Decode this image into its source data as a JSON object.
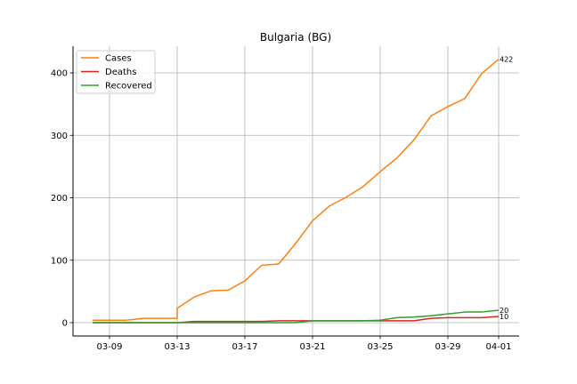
{
  "chart_data": {
    "type": "line",
    "title": "Bulgaria (BG)",
    "xlabel": "",
    "ylabel": "",
    "x_ticks": [
      "03-09",
      "03-13",
      "03-17",
      "03-21",
      "03-25",
      "03-29",
      "04-01"
    ],
    "y_ticks": [
      0,
      100,
      200,
      300,
      400
    ],
    "ylim": [
      -20,
      443
    ],
    "grid": true,
    "legend_position": "top-left",
    "series": [
      {
        "name": "Cases",
        "color": "#ff7f0e",
        "points": [
          [
            "03-08",
            4
          ],
          [
            "03-09",
            4
          ],
          [
            "03-10",
            4
          ],
          [
            "03-11",
            7
          ],
          [
            "03-12",
            7
          ],
          [
            "03-13",
            7
          ],
          [
            "03-13",
            23
          ],
          [
            "03-14",
            41
          ],
          [
            "03-15",
            51
          ],
          [
            "03-16",
            52
          ],
          [
            "03-17",
            67
          ],
          [
            "03-18",
            92
          ],
          [
            "03-19",
            94
          ],
          [
            "03-20",
            127
          ],
          [
            "03-21",
            163
          ],
          [
            "03-22",
            187
          ],
          [
            "03-23",
            201
          ],
          [
            "03-24",
            218
          ],
          [
            "03-25",
            242
          ],
          [
            "03-26",
            264
          ],
          [
            "03-27",
            293
          ],
          [
            "03-28",
            331
          ],
          [
            "03-29",
            346
          ],
          [
            "03-30",
            359
          ],
          [
            "03-31",
            399
          ],
          [
            "04-01",
            422
          ]
        ],
        "end_label": "422"
      },
      {
        "name": "Deaths",
        "color": "#d62728",
        "points": [
          [
            "03-08",
            0
          ],
          [
            "03-09",
            0
          ],
          [
            "03-10",
            0
          ],
          [
            "03-11",
            0
          ],
          [
            "03-12",
            0
          ],
          [
            "03-13",
            0
          ],
          [
            "03-14",
            2
          ],
          [
            "03-15",
            2
          ],
          [
            "03-16",
            2
          ],
          [
            "03-17",
            2
          ],
          [
            "03-18",
            2
          ],
          [
            "03-19",
            3
          ],
          [
            "03-20",
            3
          ],
          [
            "03-21",
            3
          ],
          [
            "03-22",
            3
          ],
          [
            "03-23",
            3
          ],
          [
            "03-24",
            3
          ],
          [
            "03-25",
            3
          ],
          [
            "03-26",
            3
          ],
          [
            "03-27",
            3
          ],
          [
            "03-28",
            7
          ],
          [
            "03-29",
            8
          ],
          [
            "03-30",
            8
          ],
          [
            "03-31",
            8
          ],
          [
            "04-01",
            10
          ]
        ],
        "end_label": "10"
      },
      {
        "name": "Recovered",
        "color": "#2ca02c",
        "points": [
          [
            "03-08",
            0
          ],
          [
            "03-09",
            0
          ],
          [
            "03-10",
            0
          ],
          [
            "03-11",
            0
          ],
          [
            "03-12",
            0
          ],
          [
            "03-13",
            0
          ],
          [
            "03-14",
            0
          ],
          [
            "03-15",
            0
          ],
          [
            "03-16",
            0
          ],
          [
            "03-17",
            0
          ],
          [
            "03-18",
            0
          ],
          [
            "03-19",
            0
          ],
          [
            "03-20",
            0
          ],
          [
            "03-21",
            3
          ],
          [
            "03-22",
            3
          ],
          [
            "03-23",
            3
          ],
          [
            "03-24",
            3
          ],
          [
            "03-25",
            4
          ],
          [
            "03-26",
            8
          ],
          [
            "03-27",
            9
          ],
          [
            "03-28",
            11
          ],
          [
            "03-29",
            14
          ],
          [
            "03-30",
            17
          ],
          [
            "03-31",
            17
          ],
          [
            "04-01",
            20
          ]
        ],
        "end_label": "20"
      }
    ]
  }
}
